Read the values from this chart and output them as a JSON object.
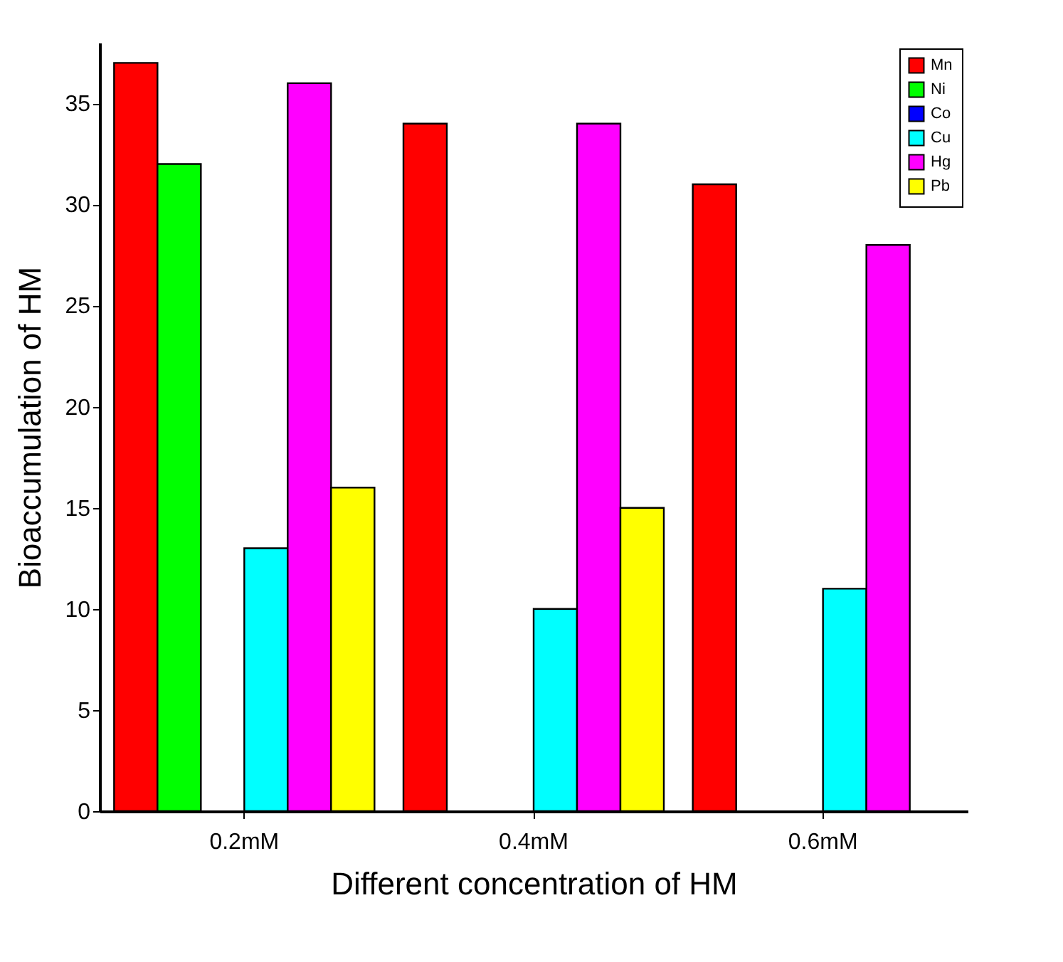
{
  "chart_data": {
    "type": "bar",
    "xlabel": "Different concentration of HM",
    "ylabel": "Bioaccumulation of HM",
    "categories": [
      "0.2mM",
      "0.4mM",
      "0.6mM"
    ],
    "series": [
      {
        "name": "Mn",
        "color": "#ff0000",
        "values": [
          37,
          34,
          31
        ]
      },
      {
        "name": "Ni",
        "color": "#00ff00",
        "values": [
          32,
          null,
          null
        ]
      },
      {
        "name": "Co",
        "color": "#0000ff",
        "values": [
          null,
          null,
          null
        ]
      },
      {
        "name": "Cu",
        "color": "#00ffff",
        "values": [
          13,
          10,
          11
        ]
      },
      {
        "name": "Hg",
        "color": "#ff00ff",
        "values": [
          36,
          34,
          28
        ]
      },
      {
        "name": "Pb",
        "color": "#ffff00",
        "values": [
          16,
          15,
          null
        ]
      }
    ],
    "ylim": [
      0,
      38
    ],
    "yticks": [
      0,
      5,
      10,
      15,
      20,
      25,
      30,
      35
    ],
    "grid": false,
    "legend": "top right"
  }
}
